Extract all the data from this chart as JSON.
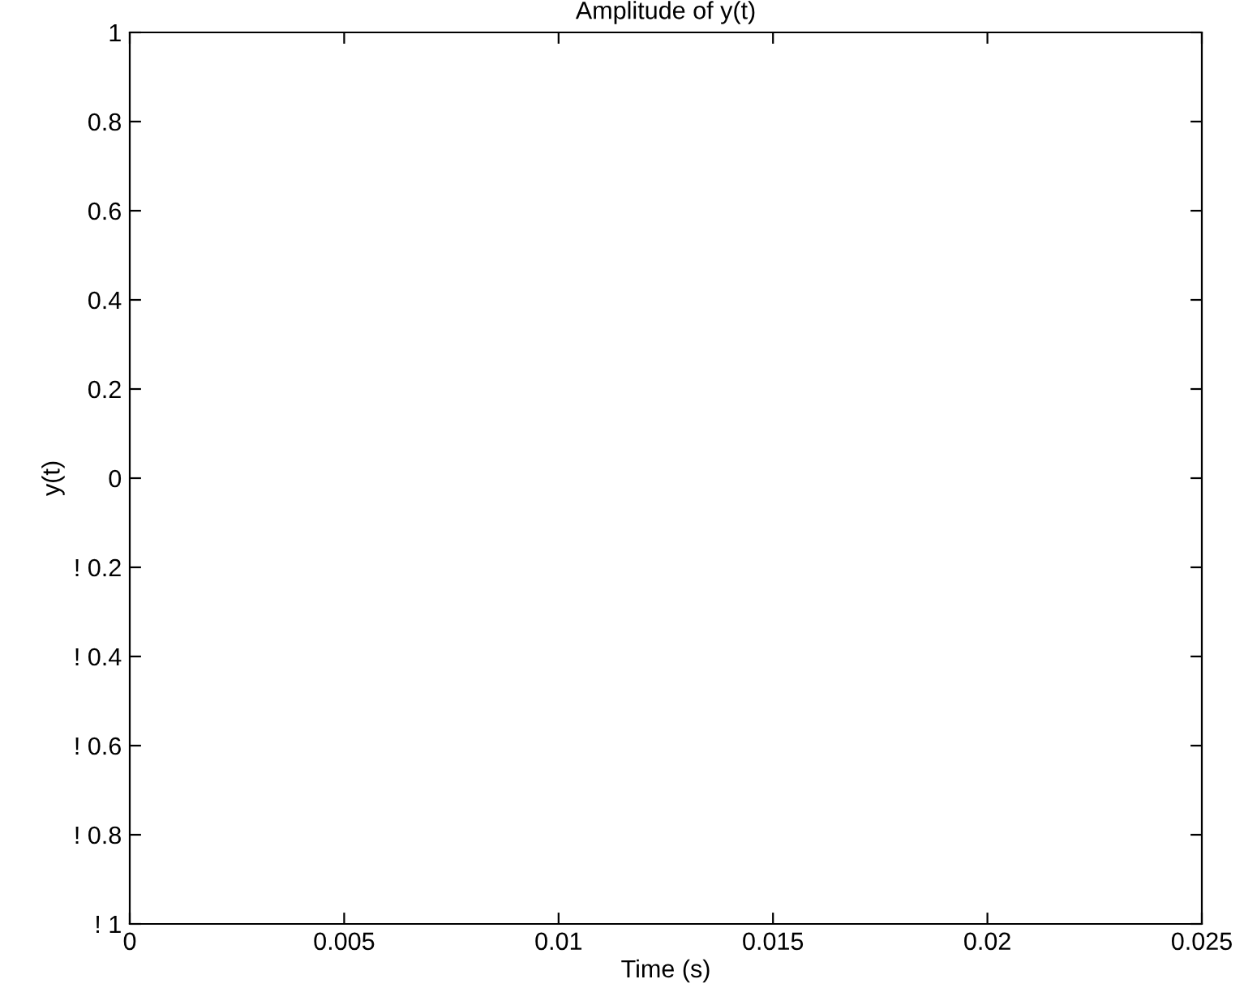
{
  "chart_data": {
    "type": "line",
    "title": "Amplitude of y(t)",
    "xlabel": "Time (s)",
    "ylabel": "y(t)",
    "xlim": [
      0,
      0.025
    ],
    "xticks": [
      0,
      0.005,
      0.01,
      0.015,
      0.02,
      0.025
    ],
    "ylim": [
      -1,
      1
    ],
    "yticks": [
      {
        "value": -1,
        "label": "! 1"
      },
      {
        "value": -0.8,
        "label": "! 0.8"
      },
      {
        "value": -0.6,
        "label": "! 0.6"
      },
      {
        "value": -0.4,
        "label": "! 0.4"
      },
      {
        "value": -0.2,
        "label": "! 0.2"
      },
      0,
      0.2,
      0.4,
      0.6,
      0.8,
      1
    ],
    "grid": false,
    "legend": false
  }
}
